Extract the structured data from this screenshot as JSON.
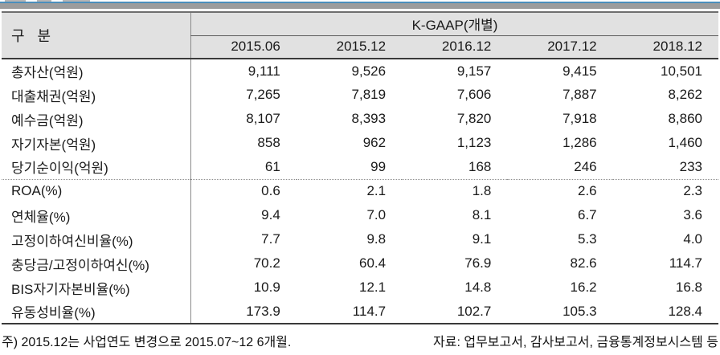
{
  "page": {
    "colors": {
      "top_bar_gray": "#9c9c9c",
      "top_bar_blue_accent": "#4a8ebc",
      "header_fill": "#e1e1e1",
      "border_dark": "#3a3a3a",
      "divider_gray": "#8a8a8a",
      "dotted_separator": "#8f8f8f"
    }
  },
  "table": {
    "corner_header": "구  분",
    "group_header": "K-GAAP(개별)",
    "columns": [
      "2015.06",
      "2015.12",
      "2016.12",
      "2017.12",
      "2018.12"
    ],
    "rows": [
      {
        "label": "총자산(억원)",
        "values": [
          "9,111",
          "9,526",
          "9,157",
          "9,415",
          "10,501"
        ]
      },
      {
        "label": "대출채권(억원)",
        "values": [
          "7,265",
          "7,819",
          "7,606",
          "7,887",
          "8,262"
        ]
      },
      {
        "label": "예수금(억원)",
        "values": [
          "8,107",
          "8,393",
          "7,820",
          "7,918",
          "8,860"
        ]
      },
      {
        "label": "자기자본(억원)",
        "values": [
          "858",
          "962",
          "1,123",
          "1,286",
          "1,460"
        ]
      },
      {
        "label": "당기순이익(억원)",
        "values": [
          "61",
          "99",
          "168",
          "246",
          "233"
        ]
      },
      {
        "label": "ROA(%)",
        "values": [
          "0.6",
          "2.1",
          "1.8",
          "2.6",
          "2.3"
        ]
      },
      {
        "label": "연체율(%)",
        "values": [
          "9.4",
          "7.0",
          "8.1",
          "6.7",
          "3.6"
        ]
      },
      {
        "label": "고정이하여신비율(%)",
        "values": [
          "7.7",
          "9.8",
          "9.1",
          "5.3",
          "4.0"
        ]
      },
      {
        "label": "충당금/고정이하여신(%)",
        "values": [
          "70.2",
          "60.4",
          "76.9",
          "82.6",
          "114.7"
        ]
      },
      {
        "label": "BIS자기자본비율(%)",
        "values": [
          "10.9",
          "12.1",
          "14.8",
          "16.2",
          "16.8"
        ]
      },
      {
        "label": "유동성비율(%)",
        "values": [
          "173.9",
          "114.7",
          "102.7",
          "105.3",
          "128.4"
        ]
      }
    ]
  },
  "notes": {
    "left": "주) 2015.12는 사업연도 변경으로 2015.07~12 6개월.",
    "right": "자료: 업무보고서, 감사보고서, 금융통계정보시스템 등"
  }
}
